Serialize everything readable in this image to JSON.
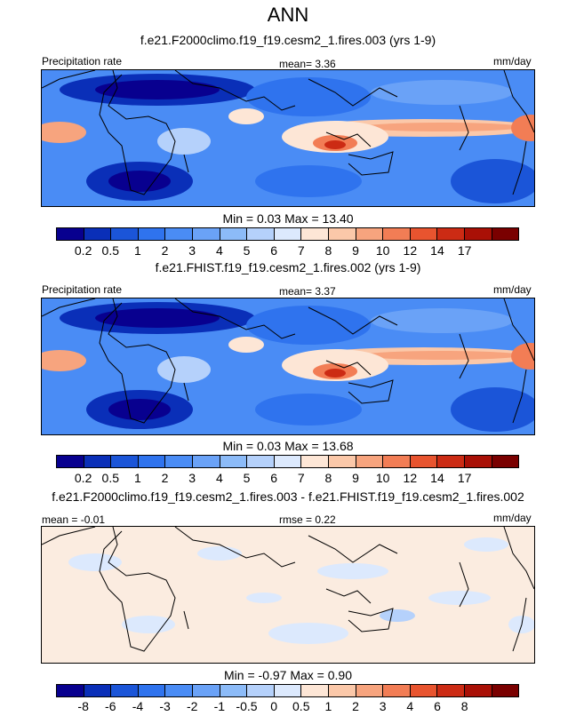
{
  "title": "ANN",
  "panels": [
    {
      "subtitle": "f.e21.F2000climo.f19_f19.cesm2_1.fires.003 (yrs 1-9)",
      "left_label": "Precipitation rate",
      "center_label": "mean=   3.36",
      "right_label": "mm/day",
      "minmax": "Min =    0.03  Max =   13.40",
      "colorbar": {
        "colors": [
          "#08008f",
          "#0a2fb8",
          "#1b55d8",
          "#2f73ee",
          "#4a8cf5",
          "#6aa2f7",
          "#8cbbf8",
          "#b5d1fb",
          "#dce9fd",
          "#fde6d6",
          "#fbc8a9",
          "#f7a47e",
          "#f27d55",
          "#e8542f",
          "#cc2b14",
          "#a91006",
          "#7a0000"
        ],
        "ticks": [
          "0.2",
          "0.5",
          "1",
          "2",
          "3",
          "4",
          "5",
          "6",
          "7",
          "8",
          "9",
          "10",
          "12",
          "14",
          "17"
        ]
      }
    },
    {
      "subtitle": "f.e21.FHIST.f19_f19.cesm2_1.fires.002 (yrs 1-9)",
      "left_label": "Precipitation rate",
      "center_label": "mean=   3.37",
      "right_label": "mm/day",
      "minmax": "Min =    0.03  Max =   13.68",
      "colorbar": {
        "colors": [
          "#08008f",
          "#0a2fb8",
          "#1b55d8",
          "#2f73ee",
          "#4a8cf5",
          "#6aa2f7",
          "#8cbbf8",
          "#b5d1fb",
          "#dce9fd",
          "#fde6d6",
          "#fbc8a9",
          "#f7a47e",
          "#f27d55",
          "#e8542f",
          "#cc2b14",
          "#a91006",
          "#7a0000"
        ],
        "ticks": [
          "0.2",
          "0.5",
          "1",
          "2",
          "3",
          "4",
          "5",
          "6",
          "7",
          "8",
          "9",
          "10",
          "12",
          "14",
          "17"
        ]
      }
    },
    {
      "subtitle": "f.e21.F2000climo.f19_f19.cesm2_1.fires.003 - f.e21.FHIST.f19_f19.cesm2_1.fires.002",
      "left_label": "mean =  -0.01",
      "center_label": "rmse =   0.22",
      "right_label": "mm/day",
      "minmax": "Min =  -0.97  Max =   0.90",
      "colorbar": {
        "colors": [
          "#08008f",
          "#0a2fb8",
          "#1b55d8",
          "#2f73ee",
          "#4a8cf5",
          "#6aa2f7",
          "#8cbbf8",
          "#b5d1fb",
          "#dce9fd",
          "#fde6d6",
          "#fbc8a9",
          "#f7a47e",
          "#f27d55",
          "#e8542f",
          "#cc2b14",
          "#a91006",
          "#7a0000"
        ],
        "ticks": [
          "-8",
          "-6",
          "-4",
          "-3",
          "-2",
          "-1",
          "-0.5",
          "0",
          "0.5",
          "1",
          "2",
          "3",
          "4",
          "6",
          "8"
        ]
      }
    }
  ]
}
